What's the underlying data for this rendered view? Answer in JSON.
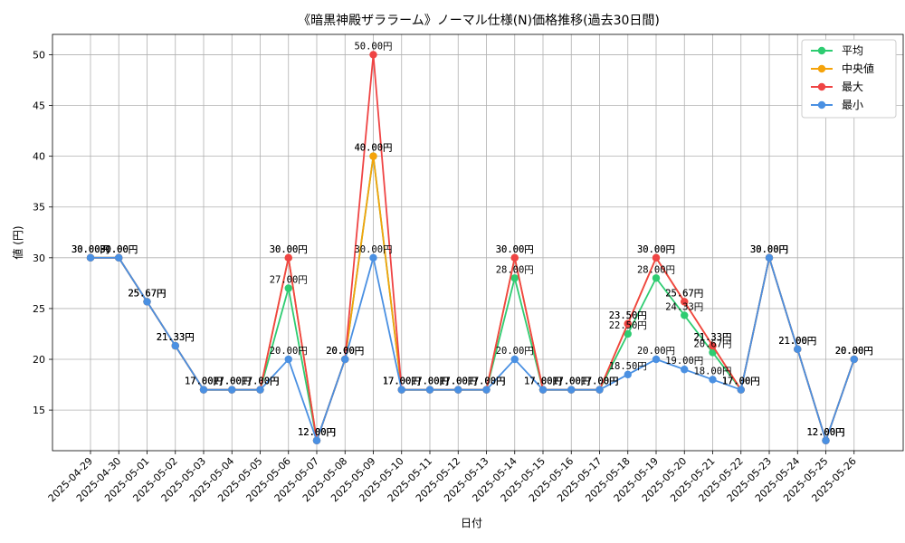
{
  "chart_data": {
    "type": "line",
    "title": "《暗黒神殿ザララーム》ノーマル仕様(N)価格推移(過去30日間)",
    "xlabel": "日付",
    "ylabel": "値 (円)",
    "ylim": [
      11,
      52
    ],
    "yticks": [
      15,
      20,
      25,
      30,
      35,
      40,
      45,
      50
    ],
    "grid": true,
    "legend_position": "top-right",
    "value_suffix": "円",
    "categories": [
      "2025-04-29",
      "2025-04-30",
      "2025-05-01",
      "2025-05-02",
      "2025-05-03",
      "2025-05-04",
      "2025-05-05",
      "2025-05-06",
      "2025-05-07",
      "2025-05-08",
      "2025-05-09",
      "2025-05-10",
      "2025-05-11",
      "2025-05-12",
      "2025-05-13",
      "2025-05-14",
      "2025-05-15",
      "2025-05-16",
      "2025-05-17",
      "2025-05-18",
      "2025-05-19",
      "2025-05-20",
      "2025-05-21",
      "2025-05-22",
      "2025-05-23",
      "2025-05-24",
      "2025-05-25",
      "2025-05-26"
    ],
    "series": [
      {
        "name": "平均",
        "color": "#2ecc71",
        "values": [
          30,
          30,
          25.67,
          21.33,
          17,
          17,
          17,
          27,
          12,
          20,
          40,
          17,
          17,
          17,
          17,
          28,
          17,
          17,
          17,
          22.5,
          28,
          24.33,
          20.67,
          17,
          30,
          21,
          12,
          20
        ]
      },
      {
        "name": "中央値",
        "color": "#f5a30a",
        "values": [
          30,
          30,
          25.67,
          21.33,
          17,
          17,
          17,
          30,
          12,
          20,
          40,
          17,
          17,
          17,
          17,
          30,
          17,
          17,
          17,
          23.5,
          30,
          25.67,
          21.33,
          17,
          30,
          21,
          12,
          20
        ]
      },
      {
        "name": "最大",
        "color": "#ef4444",
        "values": [
          30,
          30,
          25.67,
          21.33,
          17,
          17,
          17,
          30,
          12,
          20,
          50,
          17,
          17,
          17,
          17,
          30,
          17,
          17,
          17,
          23.5,
          30,
          25.67,
          21.33,
          17,
          30,
          21,
          12,
          20
        ]
      },
      {
        "name": "最小",
        "color": "#4a90e2",
        "values": [
          30,
          30,
          25.67,
          21.33,
          17,
          17,
          17,
          20,
          12,
          20,
          30,
          17,
          17,
          17,
          17,
          20,
          17,
          17,
          17,
          18.5,
          20,
          19,
          18,
          17,
          30,
          21,
          12,
          20
        ]
      }
    ]
  }
}
